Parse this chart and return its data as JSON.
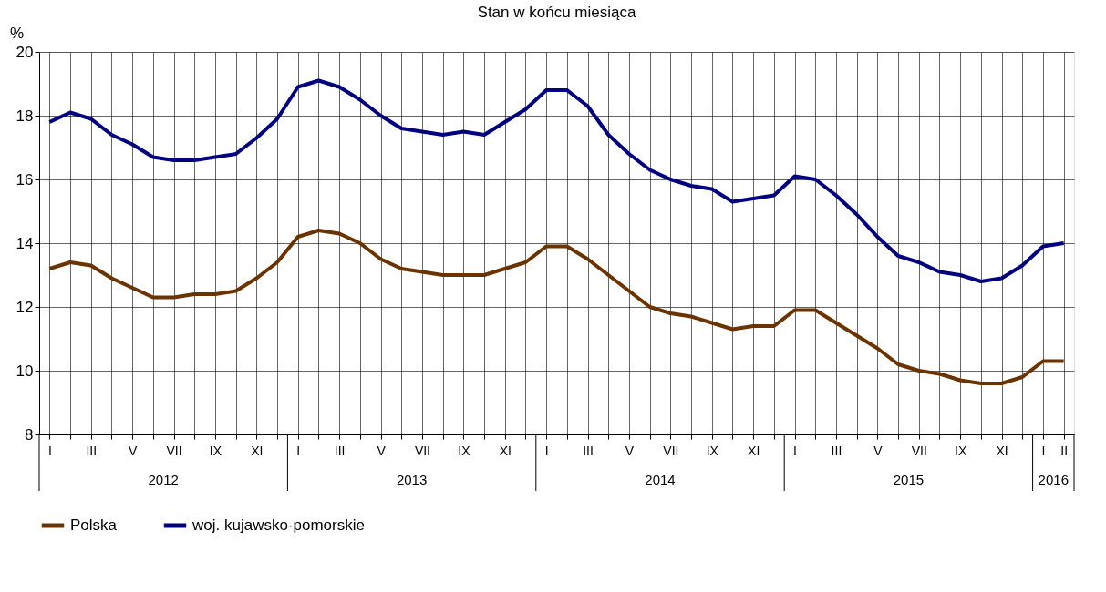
{
  "chart_data": {
    "type": "line",
    "title": "Stan w końcu miesiąca",
    "ylabel": "%",
    "categories": [
      "I",
      null,
      "III",
      null,
      "V",
      null,
      "VII",
      null,
      "IX",
      null,
      "XI",
      null,
      "I",
      null,
      "III",
      null,
      "V",
      null,
      "VII",
      null,
      "IX",
      null,
      "XI",
      null,
      "I",
      null,
      "III",
      null,
      "V",
      null,
      "VII",
      null,
      "IX",
      null,
      "XI",
      null,
      "I",
      null,
      "III",
      null,
      "V",
      null,
      "VII",
      null,
      "IX",
      null,
      "XI",
      null,
      "I",
      "II"
    ],
    "series": [
      {
        "name": "Polska",
        "color": "#6b3300",
        "values": [
          13.2,
          13.4,
          13.3,
          12.9,
          12.6,
          12.3,
          12.3,
          12.4,
          12.4,
          12.5,
          12.9,
          13.4,
          14.2,
          14.4,
          14.3,
          14.0,
          13.5,
          13.2,
          13.1,
          13.0,
          13.0,
          13.0,
          13.2,
          13.4,
          13.9,
          13.9,
          13.5,
          13.0,
          12.5,
          12.0,
          11.8,
          11.7,
          11.5,
          11.3,
          11.4,
          11.4,
          11.9,
          11.9,
          11.5,
          11.1,
          10.7,
          10.2,
          10.0,
          9.9,
          9.7,
          9.6,
          9.6,
          9.8,
          10.3,
          10.3
        ]
      },
      {
        "name": "woj. kujawsko-pomorskie",
        "color": "#000080",
        "values": [
          17.8,
          18.1,
          17.9,
          17.4,
          17.1,
          16.7,
          16.6,
          16.6,
          16.7,
          16.8,
          17.3,
          17.9,
          18.9,
          19.1,
          18.9,
          18.5,
          18.0,
          17.6,
          17.5,
          17.4,
          17.5,
          17.4,
          17.8,
          18.2,
          18.8,
          18.8,
          18.3,
          17.4,
          16.8,
          16.3,
          16.0,
          15.8,
          15.7,
          15.3,
          15.4,
          15.5,
          16.1,
          16.0,
          15.5,
          14.9,
          14.2,
          13.6,
          13.4,
          13.1,
          13.0,
          12.8,
          12.9,
          13.3,
          13.9,
          14.0
        ]
      }
    ],
    "ylim": [
      8,
      20
    ],
    "yticks": [
      8,
      10,
      12,
      14,
      16,
      18,
      20
    ],
    "grid": true,
    "legend": "bottom",
    "marker": "none",
    "line_style": "solid",
    "annotations": [
      "2012",
      "2013",
      "2014",
      "2015",
      "2016"
    ]
  }
}
